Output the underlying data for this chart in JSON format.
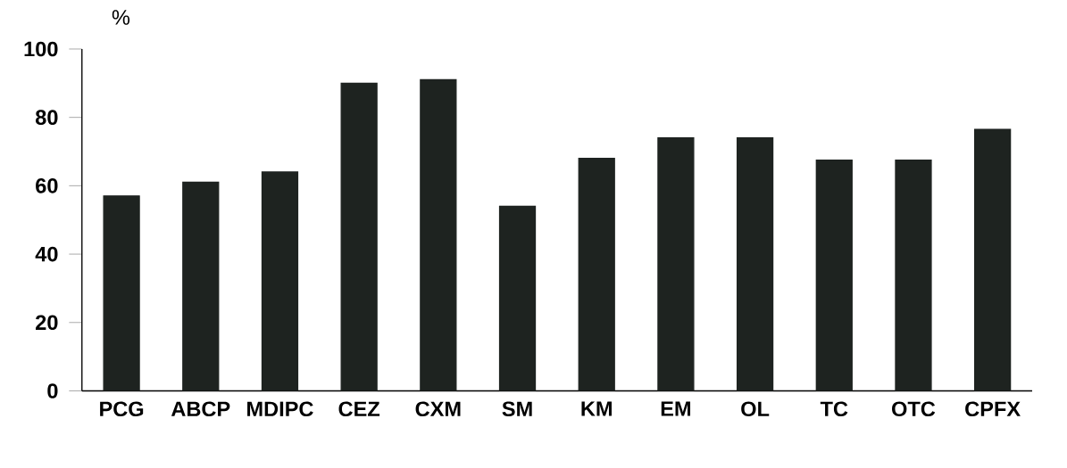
{
  "chart_data": {
    "type": "bar",
    "ylabel": "%",
    "categories": [
      "PCG",
      "ABCP",
      "MDIPC",
      "CEZ",
      "CXM",
      "SM",
      "KM",
      "EM",
      "OL",
      "TC",
      "OTC",
      "CPFX"
    ],
    "values": [
      57,
      61,
      64,
      90,
      91,
      54,
      68,
      74,
      74,
      67.5,
      67.5,
      76.5
    ],
    "color": "#1e2320",
    "ylim": [
      0,
      100
    ],
    "yticks": [
      0,
      20,
      40,
      60,
      80,
      100
    ],
    "grid": false
  }
}
